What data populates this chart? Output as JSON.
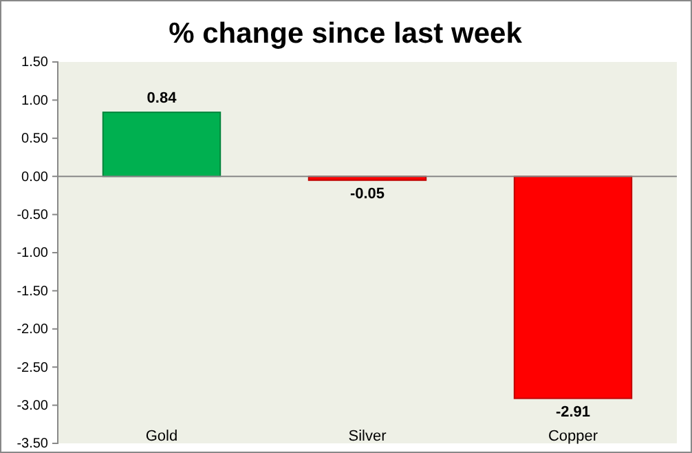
{
  "chart_data": {
    "type": "bar",
    "title": "% change since last week",
    "categories": [
      "Gold",
      "Silver",
      "Copper"
    ],
    "values": [
      0.84,
      -0.05,
      -2.91
    ],
    "colors": [
      "#00b050",
      "#ff0000",
      "#ff0000"
    ],
    "ylim": [
      -3.5,
      1.5
    ],
    "yticks": [
      {
        "value": 1.5,
        "label": "1.50"
      },
      {
        "value": 1,
        "label": "1.00"
      },
      {
        "value": 0.5,
        "label": "0.50"
      },
      {
        "value": 0,
        "label": "0.00"
      },
      {
        "value": -0.5,
        "label": "-0.50"
      },
      {
        "value": -1,
        "label": "-1.00"
      },
      {
        "value": -1.5,
        "label": "-1.50"
      },
      {
        "value": -2,
        "label": "-2.00"
      },
      {
        "value": -2.5,
        "label": "-2.50"
      },
      {
        "value": -3,
        "label": "-3.00"
      },
      {
        "value": -3.5,
        "label": "-3.50"
      }
    ],
    "data_labels": true
  }
}
